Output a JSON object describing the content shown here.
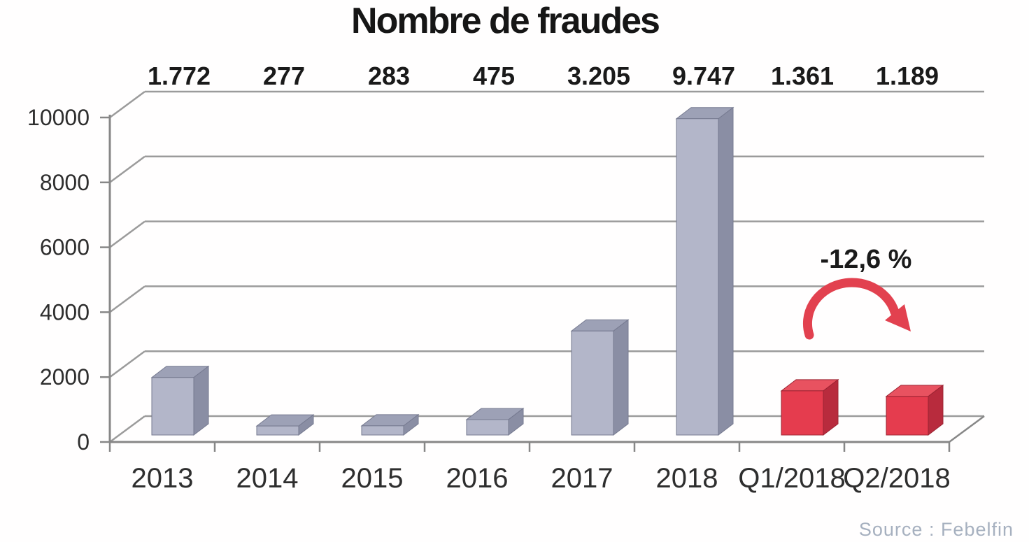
{
  "chart_data": {
    "type": "bar",
    "style": "3d-bar",
    "title": "Nombre de fraudes",
    "categories": [
      "2013",
      "2014",
      "2015",
      "2016",
      "2017",
      "2018",
      "Q1/2018",
      "Q2/2018"
    ],
    "values": [
      1772,
      277,
      283,
      475,
      3205,
      9747,
      1361,
      1189
    ],
    "value_labels": [
      "1.772",
      "277",
      "283",
      "475",
      "3.205",
      "9.747",
      "1.361",
      "1.189"
    ],
    "series_of_bar": [
      "annual",
      "annual",
      "annual",
      "annual",
      "annual",
      "annual",
      "quarterly",
      "quarterly"
    ],
    "xlabel": "",
    "ylabel": "",
    "ylim": [
      0,
      10000
    ],
    "yticks": [
      0,
      2000,
      4000,
      6000,
      8000,
      10000
    ],
    "grid": true,
    "legend": "none",
    "annotation": {
      "text": "-12,6 %",
      "applies_to": [
        "Q1/2018",
        "Q2/2018"
      ],
      "arrow": "curved-right-down"
    },
    "source": "Source : Febelfin",
    "colors": {
      "annual_front": "#b3b6c9",
      "annual_top": "#9da1b6",
      "annual_side": "#8a8ea4",
      "annual_edge": "#767a90",
      "quarterly_front": "#e53c4e",
      "quarterly_top": "#e85260",
      "quarterly_side": "#b82b3d",
      "quarterly_edge": "#9c2433",
      "arrow": "#e2414f",
      "gridline": "#9b9b9b",
      "axis": "#878787",
      "data_label": "#1a1a1a",
      "tick_label": "#2e2e2e",
      "source_text": "#a6b0bf"
    }
  }
}
